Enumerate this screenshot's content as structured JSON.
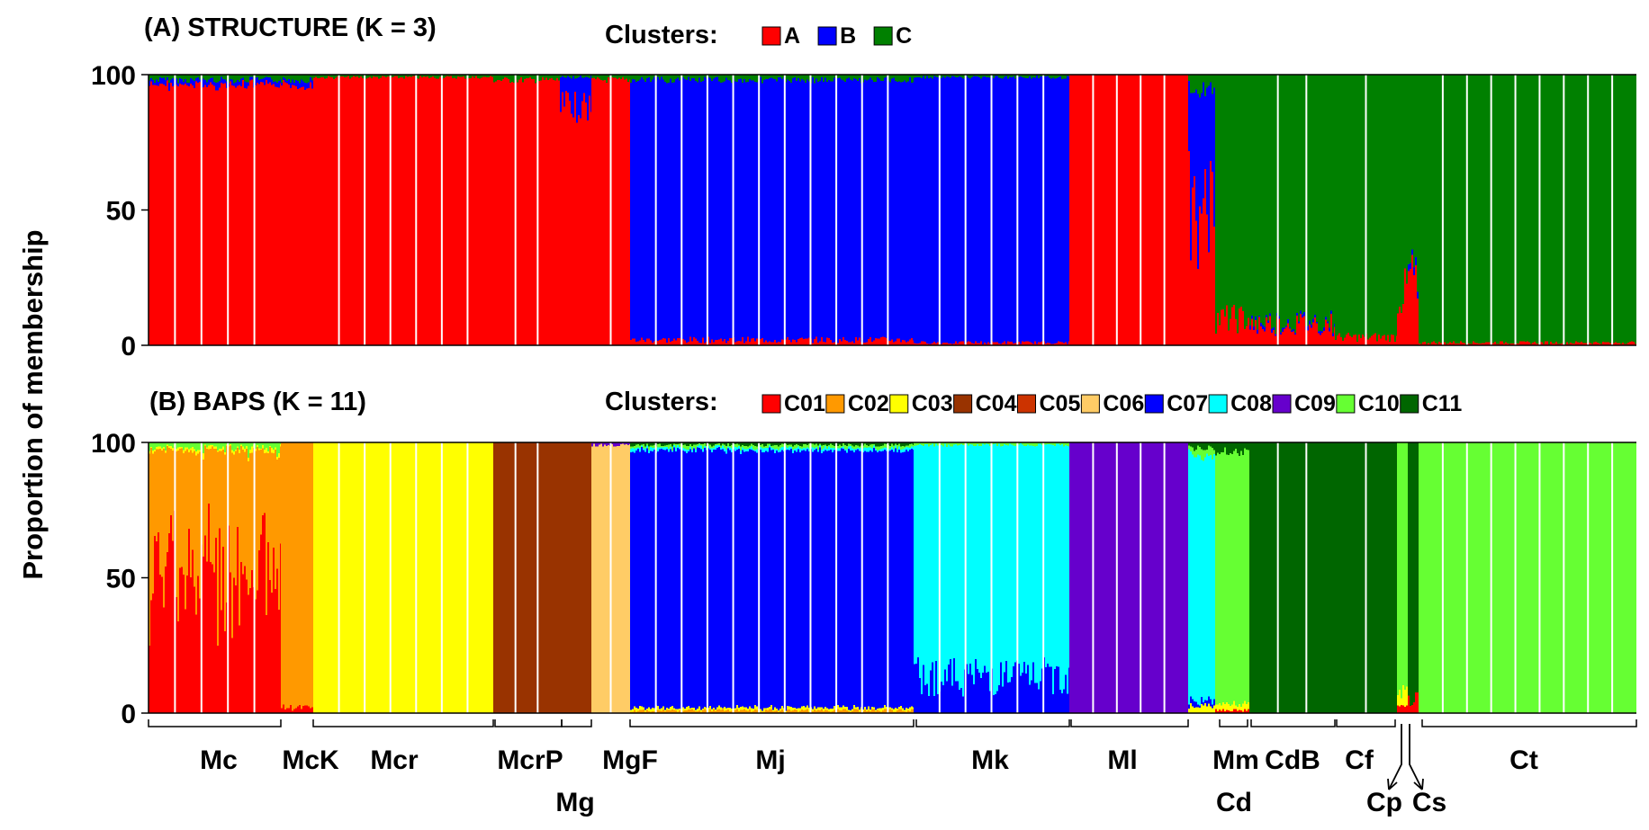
{
  "ylabel": "Proportion of membership",
  "chart_data": [
    {
      "type": "bar",
      "stacked": true,
      "title": "(A) STRUCTURE (K = 3)",
      "legend_title": "Clusters:",
      "legend_position": "top",
      "ylabel": "Proportion of membership",
      "ylim": [
        0,
        100
      ],
      "yticks": [
        0,
        50,
        100
      ],
      "series": [
        {
          "name": "A",
          "color": "#ff0000"
        },
        {
          "name": "B",
          "color": "#0000ff"
        },
        {
          "name": "C",
          "color": "#008000"
        }
      ],
      "segments": [
        {
          "group": "Mc",
          "values": [
            96,
            2,
            2
          ]
        },
        {
          "group": "McK",
          "values": [
            96,
            2,
            2
          ]
        },
        {
          "group": "Mcr",
          "values": [
            99,
            0,
            1
          ]
        },
        {
          "group": "McrP",
          "values": [
            98,
            0,
            2
          ]
        },
        {
          "group": "Mg",
          "values": [
            88,
            11,
            1
          ]
        },
        {
          "group": "MgF",
          "values": [
            98,
            0,
            2
          ]
        },
        {
          "group": "Mj",
          "values": [
            2,
            96,
            2
          ]
        },
        {
          "group": "Mk",
          "values": [
            1,
            98,
            1
          ]
        },
        {
          "group": "Ml",
          "values": [
            100,
            0,
            0
          ]
        },
        {
          "group": "Mm",
          "values": [
            50,
            45,
            5
          ]
        },
        {
          "group": "Cd",
          "values": [
            10,
            0,
            90
          ]
        },
        {
          "group": "CdB",
          "values": [
            8,
            1,
            91
          ]
        },
        {
          "group": "Cf",
          "values": [
            3,
            0,
            97
          ]
        },
        {
          "group": "Cp",
          "values": [
            20,
            0,
            80
          ]
        },
        {
          "group": "Cs",
          "values": [
            25,
            2,
            73
          ]
        },
        {
          "group": "Ct",
          "values": [
            1,
            0,
            99
          ]
        }
      ]
    },
    {
      "type": "bar",
      "stacked": true,
      "title": "(B) BAPS (K = 11)",
      "legend_title": "Clusters:",
      "legend_position": "top",
      "ylabel": "Proportion of membership",
      "ylim": [
        0,
        100
      ],
      "yticks": [
        0,
        50,
        100
      ],
      "series": [
        {
          "name": "C01",
          "color": "#ff0000"
        },
        {
          "name": "C02",
          "color": "#ff9900"
        },
        {
          "name": "C03",
          "color": "#ffff00"
        },
        {
          "name": "C04",
          "color": "#993300"
        },
        {
          "name": "C05",
          "color": "#cc3300"
        },
        {
          "name": "C06",
          "color": "#ffcc66"
        },
        {
          "name": "C07",
          "color": "#0000ff"
        },
        {
          "name": "C08",
          "color": "#00ffff"
        },
        {
          "name": "C09",
          "color": "#6600cc"
        },
        {
          "name": "C10",
          "color": "#66ff33"
        },
        {
          "name": "C11",
          "color": "#006600"
        }
      ],
      "segments": [
        {
          "group": "Mc",
          "dominant": "C01/C02",
          "values": [
            55,
            42,
            1,
            0,
            0,
            0,
            0,
            0,
            0,
            2,
            0
          ]
        },
        {
          "group": "McK",
          "dominant": "C02",
          "values": [
            2,
            98,
            0,
            0,
            0,
            0,
            0,
            0,
            0,
            0,
            0
          ]
        },
        {
          "group": "Mcr",
          "dominant": "C03",
          "values": [
            0,
            0,
            100,
            0,
            0,
            0,
            0,
            0,
            0,
            0,
            0
          ]
        },
        {
          "group": "McrP",
          "dominant": "C04",
          "values": [
            0,
            0,
            0,
            100,
            0,
            0,
            0,
            0,
            0,
            0,
            0
          ]
        },
        {
          "group": "Mg",
          "dominant": "C04",
          "values": [
            0,
            0,
            0,
            100,
            0,
            0,
            0,
            0,
            0,
            0,
            0
          ]
        },
        {
          "group": "MgF",
          "dominant": "C06",
          "values": [
            0,
            0,
            0,
            0,
            0,
            99,
            0,
            0,
            1,
            0,
            0
          ]
        },
        {
          "group": "Mj",
          "dominant": "C07",
          "values": [
            0,
            1,
            1,
            0,
            0,
            0,
            95,
            1,
            0,
            1,
            1
          ]
        },
        {
          "group": "Mk",
          "dominant": "C08/C07",
          "values": [
            0,
            0,
            0,
            0,
            0,
            0,
            14,
            85,
            0,
            1,
            0
          ]
        },
        {
          "group": "Ml",
          "dominant": "C09",
          "values": [
            0,
            0,
            0,
            0,
            0,
            0,
            0,
            0,
            100,
            0,
            0
          ]
        },
        {
          "group": "Mm",
          "dominant": "C08",
          "values": [
            0,
            0,
            3,
            0,
            0,
            0,
            2,
            90,
            0,
            3,
            2
          ]
        },
        {
          "group": "Cd",
          "dominant": "C10",
          "values": [
            1,
            0,
            2,
            0,
            0,
            0,
            0,
            0,
            0,
            93,
            4
          ]
        },
        {
          "group": "CdB",
          "dominant": "C11",
          "values": [
            0,
            0,
            0,
            0,
            0,
            0,
            0,
            0,
            0,
            0,
            100
          ]
        },
        {
          "group": "Cf",
          "dominant": "C11",
          "values": [
            0,
            0,
            0,
            0,
            0,
            0,
            0,
            0,
            0,
            0,
            100
          ]
        },
        {
          "group": "Cp",
          "dominant": "C10",
          "values": [
            2,
            0,
            5,
            0,
            0,
            0,
            0,
            0,
            0,
            93,
            0
          ]
        },
        {
          "group": "Cs",
          "dominant": "C11",
          "values": [
            5,
            0,
            0,
            0,
            0,
            0,
            0,
            0,
            0,
            0,
            95
          ]
        },
        {
          "group": "Ct",
          "dominant": "C10",
          "values": [
            0,
            0,
            0,
            0,
            0,
            0,
            0,
            0,
            0,
            100,
            0
          ]
        }
      ]
    }
  ],
  "group_labels": [
    "Mc",
    "McK",
    "Mcr",
    "McrP",
    "Mg",
    "MgF",
    "Mj",
    "Mk",
    "Ml",
    "Mm",
    "Cd",
    "CdB",
    "Cf",
    "Cp",
    "Cs",
    "Ct"
  ]
}
